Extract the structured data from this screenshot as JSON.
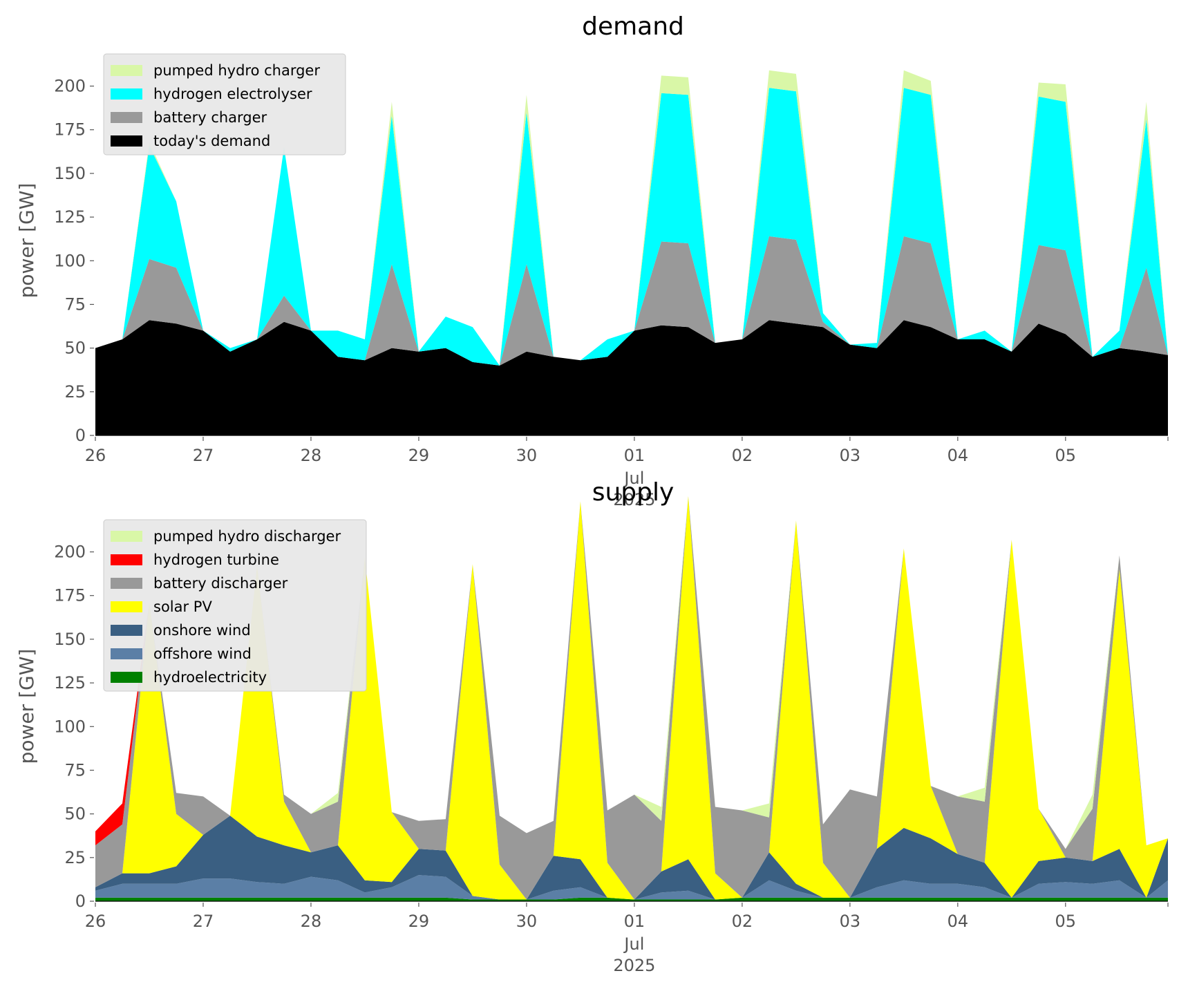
{
  "chart_data": [
    {
      "type": "area",
      "stacked": true,
      "title": "demand",
      "xlabel": "",
      "ylabel": "power [GW]",
      "ylim": [
        0,
        220
      ],
      "yticks": [
        "0",
        "25",
        "50",
        "75",
        "100",
        "125",
        "150",
        "175",
        "200"
      ],
      "xticks": [
        "26",
        "27",
        "28",
        "29",
        "30",
        "01",
        "02",
        "03",
        "04",
        "05"
      ],
      "xticks_sub": [
        "Jul",
        "2025"
      ],
      "x": [
        0,
        0.25,
        0.5,
        0.75,
        1,
        1.25,
        1.5,
        1.75,
        2,
        2.25,
        2.5,
        2.75,
        3,
        3.25,
        3.5,
        3.75,
        4,
        4.25,
        4.5,
        4.75,
        5,
        5.25,
        5.5,
        5.75,
        6,
        6.25,
        6.5,
        6.75,
        7,
        7.25,
        7.5,
        7.75,
        8,
        8.25,
        8.5,
        8.75,
        9,
        9.25,
        9.5,
        9.75,
        9.95
      ],
      "x_units": "days since 26 Jun 2025",
      "legend_position": "top-left",
      "series": [
        {
          "name": "today's demand",
          "color": "#000000",
          "values": [
            50,
            55,
            66,
            64,
            60,
            48,
            55,
            65,
            60,
            45,
            43,
            50,
            48,
            50,
            42,
            40,
            48,
            45,
            43,
            45,
            60,
            63,
            62,
            53,
            55,
            66,
            64,
            62,
            52,
            50,
            66,
            62,
            55,
            55,
            48,
            64,
            58,
            45,
            50,
            48,
            46
          ]
        },
        {
          "name": "battery charger",
          "color": "#999999",
          "values": [
            0,
            0,
            35,
            32,
            0,
            0,
            0,
            15,
            0,
            0,
            0,
            48,
            0,
            0,
            0,
            0,
            50,
            0,
            0,
            0,
            0,
            48,
            48,
            0,
            0,
            48,
            48,
            3,
            0,
            0,
            48,
            48,
            0,
            0,
            0,
            45,
            48,
            0,
            0,
            48,
            0
          ]
        },
        {
          "name": "hydrogen electrolyser",
          "color": "#00FFFF",
          "values": [
            0,
            0,
            65,
            38,
            0,
            2,
            0,
            85,
            0,
            15,
            12,
            85,
            0,
            18,
            20,
            0,
            87,
            0,
            0,
            10,
            0,
            85,
            85,
            0,
            0,
            85,
            85,
            5,
            0,
            3,
            85,
            85,
            0,
            5,
            0,
            85,
            85,
            0,
            10,
            85,
            0
          ]
        },
        {
          "name": "pumped hydro charger",
          "color": "#D9F7A7",
          "values": [
            0,
            0,
            2,
            0,
            0,
            0,
            0,
            0,
            0,
            0,
            0,
            8,
            0,
            0,
            0,
            0,
            10,
            0,
            0,
            0,
            0,
            10,
            10,
            0,
            0,
            10,
            10,
            0,
            0,
            0,
            10,
            8,
            0,
            0,
            0,
            8,
            10,
            0,
            0,
            10,
            0
          ]
        }
      ]
    },
    {
      "type": "area",
      "stacked": true,
      "title": "supply",
      "xlabel": "",
      "ylabel": "power [GW]",
      "ylim": [
        0,
        220
      ],
      "yticks": [
        "0",
        "25",
        "50",
        "75",
        "100",
        "125",
        "150",
        "175",
        "200"
      ],
      "xticks": [
        "26",
        "27",
        "28",
        "29",
        "30",
        "01",
        "02",
        "03",
        "04",
        "05"
      ],
      "xticks_sub": [
        "Jul",
        "2025"
      ],
      "x": [
        0,
        0.25,
        0.5,
        0.75,
        1,
        1.25,
        1.5,
        1.75,
        2,
        2.25,
        2.5,
        2.75,
        3,
        3.25,
        3.5,
        3.75,
        4,
        4.25,
        4.5,
        4.75,
        5,
        5.25,
        5.5,
        5.75,
        6,
        6.25,
        6.5,
        6.75,
        7,
        7.25,
        7.5,
        7.75,
        8,
        8.25,
        8.5,
        8.75,
        9,
        9.25,
        9.5,
        9.75,
        9.95
      ],
      "x_units": "days since 26 Jun 2025",
      "legend_position": "top-left",
      "series": [
        {
          "name": "hydroelectricity",
          "color": "#008000",
          "values": [
            2,
            2,
            2,
            2,
            2,
            2,
            2,
            2,
            2,
            2,
            2,
            2,
            2,
            2,
            1,
            1,
            1,
            1,
            2,
            2,
            1,
            1,
            1,
            1,
            2,
            2,
            2,
            2,
            2,
            2,
            2,
            2,
            2,
            2,
            2,
            2,
            2,
            2,
            2,
            2,
            2
          ]
        },
        {
          "name": "offshore wind",
          "color": "#5B7FA6",
          "values": [
            4,
            8,
            8,
            8,
            11,
            11,
            9,
            8,
            12,
            10,
            3,
            6,
            13,
            12,
            2,
            0,
            0,
            5,
            6,
            0,
            0,
            4,
            5,
            0,
            0,
            10,
            4,
            0,
            0,
            6,
            10,
            8,
            8,
            6,
            0,
            8,
            9,
            8,
            10,
            0,
            10
          ]
        },
        {
          "name": "onshore wind",
          "color": "#3A5F82",
          "values": [
            2,
            6,
            6,
            10,
            25,
            36,
            26,
            22,
            14,
            20,
            7,
            3,
            15,
            15,
            0,
            0,
            0,
            20,
            16,
            0,
            0,
            12,
            18,
            0,
            0,
            16,
            4,
            0,
            0,
            22,
            30,
            26,
            17,
            14,
            0,
            13,
            14,
            13,
            18,
            0,
            24
          ]
        },
        {
          "name": "solar PV",
          "color": "#FFFF00",
          "values": [
            0,
            0,
            155,
            30,
            0,
            0,
            155,
            25,
            0,
            0,
            185,
            40,
            0,
            0,
            190,
            20,
            0,
            0,
            205,
            20,
            0,
            0,
            208,
            15,
            0,
            0,
            208,
            20,
            0,
            0,
            160,
            30,
            0,
            0,
            205,
            30,
            0,
            0,
            160,
            30,
            0
          ]
        },
        {
          "name": "battery discharger",
          "color": "#999999",
          "values": [
            24,
            28,
            0,
            12,
            22,
            0,
            0,
            4,
            22,
            25,
            0,
            0,
            16,
            18,
            0,
            28,
            38,
            20,
            0,
            30,
            60,
            29,
            0,
            38,
            50,
            20,
            0,
            22,
            62,
            30,
            0,
            0,
            33,
            35,
            0,
            0,
            5,
            30,
            8,
            0,
            0
          ]
        },
        {
          "name": "hydrogen turbine",
          "color": "#FF0000",
          "values": [
            8,
            12,
            0,
            0,
            0,
            0,
            0,
            0,
            0,
            0,
            0,
            0,
            0,
            0,
            0,
            0,
            0,
            0,
            0,
            0,
            0,
            0,
            0,
            0,
            0,
            0,
            0,
            0,
            0,
            0,
            0,
            0,
            0,
            0,
            0,
            0,
            0,
            0,
            0,
            0,
            0
          ]
        },
        {
          "name": "pumped hydro discharger",
          "color": "#D9F7A7",
          "values": [
            0,
            0,
            0,
            0,
            0,
            0,
            0,
            0,
            0,
            5,
            0,
            0,
            0,
            0,
            0,
            0,
            0,
            0,
            0,
            0,
            0,
            8,
            0,
            0,
            0,
            8,
            0,
            0,
            0,
            0,
            0,
            0,
            0,
            8,
            0,
            0,
            0,
            8,
            0,
            0,
            0
          ]
        }
      ]
    }
  ]
}
